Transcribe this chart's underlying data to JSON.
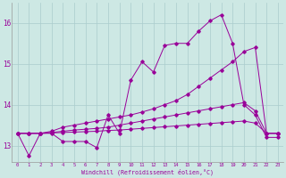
{
  "xlabel": "Windchill (Refroidissement éolien,°C)",
  "bg_color": "#cde8e4",
  "grid_color": "#aacccc",
  "line_color": "#990099",
  "x_ticks": [
    0,
    1,
    2,
    3,
    4,
    5,
    6,
    7,
    8,
    9,
    10,
    11,
    12,
    13,
    14,
    15,
    16,
    17,
    18,
    19,
    20,
    21,
    22,
    23
  ],
  "ylim": [
    12.6,
    16.5
  ],
  "xlim": [
    -0.5,
    23.5
  ],
  "yticks": [
    13,
    14,
    15,
    16
  ],
  "series": {
    "line1_x": [
      0,
      1,
      2,
      3,
      4,
      5,
      6,
      7,
      8,
      9,
      10,
      11,
      12,
      13,
      14,
      15,
      16,
      17,
      18,
      19,
      20,
      21,
      22,
      23
    ],
    "line1_y": [
      13.3,
      12.75,
      13.3,
      13.3,
      13.1,
      13.1,
      13.1,
      12.95,
      13.75,
      13.3,
      14.6,
      15.05,
      14.8,
      15.45,
      15.5,
      15.5,
      15.8,
      16.05,
      16.2,
      15.5,
      14.0,
      13.75,
      13.2,
      13.2
    ],
    "line2_x": [
      0,
      1,
      2,
      3,
      4,
      5,
      6,
      7,
      8,
      9,
      10,
      11,
      12,
      13,
      14,
      15,
      16,
      17,
      18,
      19,
      20,
      21,
      22,
      23
    ],
    "line2_y": [
      13.3,
      13.3,
      13.3,
      13.35,
      13.45,
      13.5,
      13.55,
      13.6,
      13.65,
      13.7,
      13.75,
      13.82,
      13.9,
      14.0,
      14.1,
      14.25,
      14.45,
      14.65,
      14.85,
      15.05,
      15.3,
      15.4,
      13.3,
      13.3
    ],
    "line3_x": [
      0,
      1,
      2,
      3,
      4,
      5,
      6,
      7,
      8,
      9,
      10,
      11,
      12,
      13,
      14,
      15,
      16,
      17,
      18,
      19,
      20,
      21,
      22,
      23
    ],
    "line3_y": [
      13.3,
      13.3,
      13.3,
      13.32,
      13.35,
      13.38,
      13.4,
      13.42,
      13.45,
      13.5,
      13.55,
      13.6,
      13.65,
      13.7,
      13.75,
      13.8,
      13.85,
      13.9,
      13.95,
      14.0,
      14.05,
      13.85,
      13.3,
      13.3
    ],
    "line4_x": [
      0,
      1,
      2,
      3,
      4,
      5,
      6,
      7,
      8,
      9,
      10,
      11,
      12,
      13,
      14,
      15,
      16,
      17,
      18,
      19,
      20,
      21,
      22,
      23
    ],
    "line4_y": [
      13.3,
      13.3,
      13.3,
      13.31,
      13.32,
      13.33,
      13.34,
      13.35,
      13.37,
      13.38,
      13.4,
      13.42,
      13.44,
      13.46,
      13.48,
      13.5,
      13.52,
      13.54,
      13.56,
      13.58,
      13.6,
      13.55,
      13.3,
      13.3
    ]
  }
}
